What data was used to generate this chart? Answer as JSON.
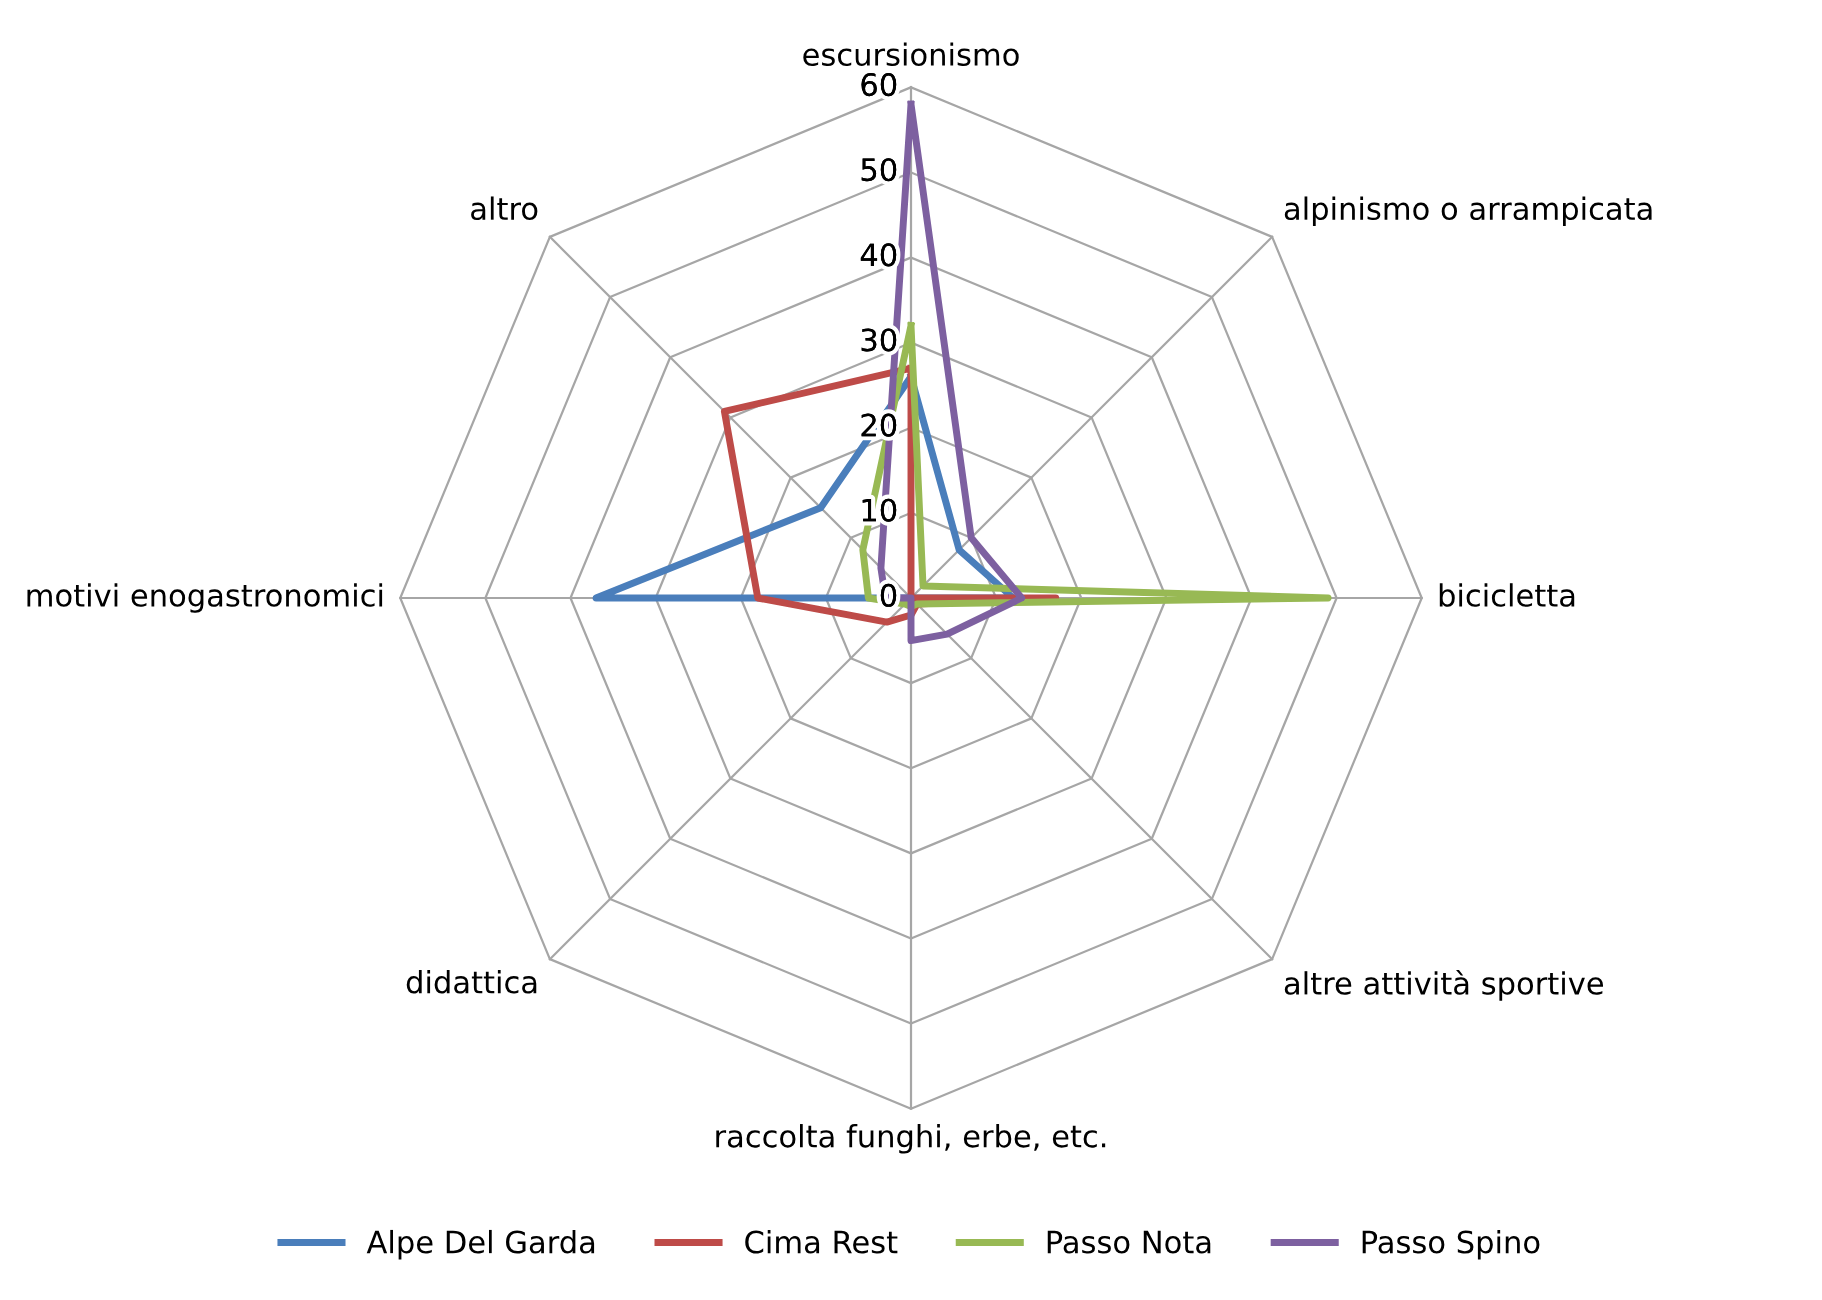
{
  "chart_data": {
    "type": "radar",
    "categories": [
      "escursionismo",
      "alpinismo o arrampicata",
      "bicicletta",
      "altre attività sportive",
      "raccolta funghi, erbe, etc.",
      "didattica",
      "motivi enogastronomici",
      "altro"
    ],
    "ylim": [
      0,
      60
    ],
    "yticks": [
      0,
      10,
      20,
      30,
      40,
      50,
      60
    ],
    "grid": true,
    "legend": "bottom",
    "series": [
      {
        "name": "Alpe Del Garda",
        "color": "#4a7ebb",
        "values": [
          26,
          8,
          12,
          0,
          0,
          0,
          37,
          15
        ]
      },
      {
        "name": "Cima Rest",
        "color": "#be4b48",
        "values": [
          27,
          0,
          17,
          1,
          2,
          4,
          18,
          31
        ]
      },
      {
        "name": "Passo Nota",
        "color": "#98b954",
        "values": [
          32,
          2,
          49,
          1,
          1,
          1,
          5,
          8
        ]
      },
      {
        "name": "Passo Spino",
        "color": "#7d60a0",
        "values": [
          58,
          10,
          13,
          6,
          5,
          0,
          3,
          5
        ]
      }
    ]
  }
}
